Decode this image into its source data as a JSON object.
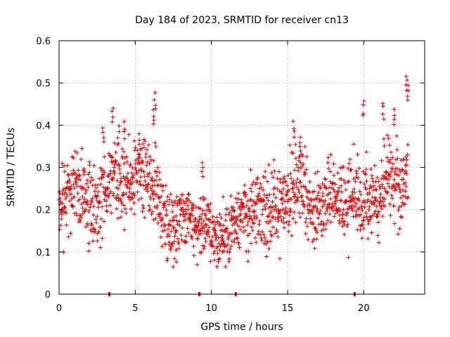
{
  "chart_data": {
    "type": "scatter",
    "title": "Day 184 of 2023, SRMTID for receiver cn13",
    "xlabel": "GPS time / hours",
    "ylabel": "SRMTID / TECUs",
    "xlim": [
      0,
      24
    ],
    "ylim": [
      0,
      0.6
    ],
    "xticks": [
      0,
      5,
      10,
      15,
      20
    ],
    "xtick_labels": [
      "0",
      "5",
      "10",
      "15",
      "20"
    ],
    "yticks": [
      0,
      0.1,
      0.2,
      0.3,
      0.4,
      0.5,
      0.6
    ],
    "ytick_labels": [
      "0",
      "0.1",
      "0.2",
      "0.3",
      "0.4",
      "0.5",
      "0.6"
    ],
    "grid": true,
    "marker": "plus",
    "color": "#e00000",
    "point_count": 1500,
    "trend_profile": {
      "x": [
        0,
        0.5,
        1,
        1.5,
        2,
        2.5,
        3,
        3.5,
        4,
        4.5,
        5,
        5.5,
        6,
        6.5,
        7,
        7.5,
        8,
        8.5,
        9,
        9.5,
        10,
        10.5,
        11,
        11.5,
        12,
        12.5,
        13,
        13.5,
        14,
        14.5,
        15,
        15.5,
        16,
        16.5,
        17,
        17.5,
        18,
        18.5,
        19,
        19.5,
        20,
        20.5,
        21,
        21.5,
        22,
        22.5,
        22.9
      ],
      "y": [
        0.19,
        0.24,
        0.25,
        0.24,
        0.23,
        0.22,
        0.24,
        0.28,
        0.27,
        0.26,
        0.29,
        0.28,
        0.27,
        0.22,
        0.17,
        0.16,
        0.17,
        0.19,
        0.15,
        0.17,
        0.14,
        0.14,
        0.13,
        0.17,
        0.18,
        0.2,
        0.2,
        0.21,
        0.21,
        0.21,
        0.21,
        0.28,
        0.27,
        0.19,
        0.19,
        0.22,
        0.23,
        0.22,
        0.22,
        0.24,
        0.22,
        0.23,
        0.21,
        0.29,
        0.27,
        0.24,
        0.32
      ]
    },
    "spikes": [
      {
        "x": 3.5,
        "y": 0.45
      },
      {
        "x": 3.9,
        "y": 0.4
      },
      {
        "x": 4.3,
        "y": 0.41
      },
      {
        "x": 5.3,
        "y": 0.38
      },
      {
        "x": 6.3,
        "y": 0.48
      },
      {
        "x": 6.2,
        "y": 0.44
      },
      {
        "x": 9.4,
        "y": 0.32
      },
      {
        "x": 15.4,
        "y": 0.41
      },
      {
        "x": 15.8,
        "y": 0.38
      },
      {
        "x": 20.0,
        "y": 0.46
      },
      {
        "x": 21.3,
        "y": 0.46
      },
      {
        "x": 22.0,
        "y": 0.44
      },
      {
        "x": 22.8,
        "y": 0.52
      },
      {
        "x": 22.9,
        "y": 0.5
      },
      {
        "x": 2.9,
        "y": 0.4
      }
    ],
    "zero_markers_x": [
      3.3,
      9.2,
      11.6,
      19.4
    ]
  }
}
